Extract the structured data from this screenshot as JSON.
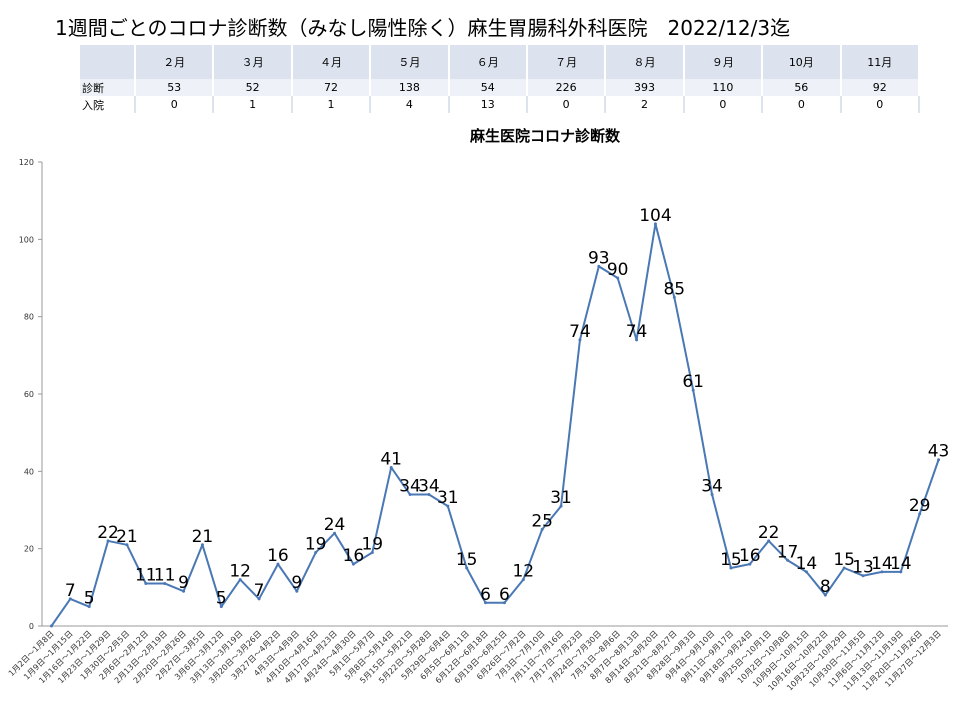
{
  "title": "1週間ごとのコロナ診断数（みなし陽性除く）麻生胃腸科外科医院　2022/12/3迄",
  "table": {
    "months": [
      "２月",
      "３月",
      "４月",
      "５月",
      "６月",
      "７月",
      "８月",
      "９月",
      "10月",
      "11月"
    ],
    "rows": [
      {
        "label": "診断",
        "values": [
          "53",
          "52",
          "72",
          "138",
          "54",
          "226",
          "393",
          "110",
          "56",
          "92"
        ]
      },
      {
        "label": "入院",
        "values": [
          "0",
          "1",
          "1",
          "4",
          "13",
          "0",
          "2",
          "0",
          "0",
          "0"
        ]
      }
    ]
  },
  "chart_data": {
    "type": "line",
    "title": "麻生医院コロナ診断数",
    "ylim": [
      0,
      120
    ],
    "yticks": [
      0,
      20,
      40,
      60,
      80,
      100,
      120
    ],
    "line_color": "#4a78b5",
    "categories": [
      "1月2日～1月8日",
      "1月9日～1月15日",
      "1月16日～1月22日",
      "1月23日～1月29日",
      "1月30日～2月5日",
      "2月6日～2月12日",
      "2月13日～2月19日",
      "2月20日～2月26日",
      "2月27日～3月5日",
      "3月6日～3月12日",
      "3月13日～3月19日",
      "3月20日～3月26日",
      "3月27日～4月2日",
      "4月3日～4月9日",
      "4月10日～4月16日",
      "4月17日～4月23日",
      "4月24日～4月30日",
      "5月1日～5月7日",
      "5月8日～5月14日",
      "5月15日～5月21日",
      "5月22日～5月28日",
      "5月29日～6月4日",
      "6月5日～6月11日",
      "6月12日～6月18日",
      "6月19日～6月25日",
      "6月26日～7月2日",
      "7月3日～7月10日",
      "7月11日～7月16日",
      "7月17日～7月23日",
      "7月24日～7月30日",
      "7月31日～8月6日",
      "8月7日～8月13日",
      "8月14日～8月20日",
      "8月21日～8月27日",
      "8月28日～9月3日",
      "9月4日～9月10日",
      "9月11日～9月17日",
      "9月18日～9月24日",
      "9月25日～10月1日",
      "10月2日～10月8日",
      "10月9日～10月15日",
      "10月16日～10月22日",
      "10月23日～10月29日",
      "10月30日～11月5日",
      "11月6日～11月12日",
      "11月13日～11月19日",
      "11月20日～11月26日",
      "11月27日～12月3日"
    ],
    "values": [
      0,
      7,
      5,
      22,
      21,
      11,
      11,
      9,
      21,
      5,
      12,
      7,
      16,
      9,
      19,
      24,
      16,
      19,
      41,
      34,
      34,
      31,
      15,
      6,
      6,
      12,
      25,
      31,
      74,
      93,
      90,
      74,
      104,
      85,
      61,
      34,
      15,
      16,
      22,
      17,
      14,
      8,
      15,
      13,
      14,
      14,
      29,
      43
    ],
    "data_labels": [
      "",
      "7",
      "5",
      "22",
      "21",
      "11",
      "11",
      "9",
      "21",
      "5",
      "12",
      "7",
      "16",
      "9",
      "19",
      "24",
      "16",
      "19",
      "41",
      "34",
      "34",
      "31",
      "15",
      "6",
      "6",
      "12",
      "25",
      "31",
      "74",
      "93",
      "90",
      "74",
      "104",
      "85",
      "61",
      "34",
      "15",
      "16",
      "22",
      "17",
      "14",
      "8",
      "15",
      "13",
      "14",
      "14",
      "29",
      "43"
    ]
  }
}
